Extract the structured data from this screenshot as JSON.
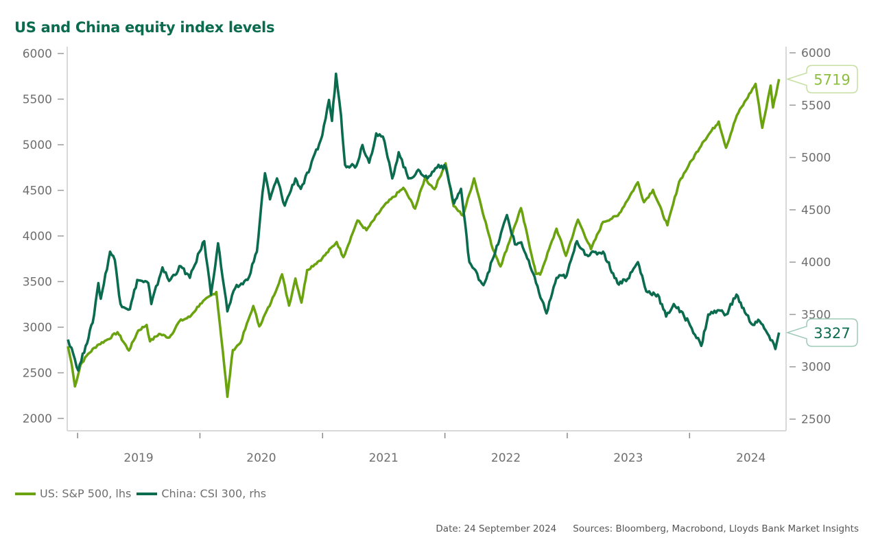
{
  "chart_data": {
    "type": "line",
    "title": "US and China equity index levels",
    "xlabel": "",
    "x_tick_labels": [
      "2019",
      "2020",
      "2021",
      "2022",
      "2023",
      "2024"
    ],
    "xlim": [
      "2018-12-01",
      "2024-10-15"
    ],
    "left_axis": {
      "label": "lhs",
      "ylim": [
        2000,
        6000
      ],
      "ticks": [
        2000,
        2500,
        3000,
        3500,
        4000,
        4500,
        5000,
        5500,
        6000
      ]
    },
    "right_axis": {
      "label": "rhs",
      "ylim": [
        2500,
        6000
      ],
      "ticks": [
        2500,
        3000,
        3500,
        4000,
        4500,
        5000,
        5500,
        6000
      ]
    },
    "grid": false,
    "legend_position": "bottom-left",
    "series": [
      {
        "name": "US: S&P 500, lhs",
        "axis": "left",
        "color": "#6aa30f",
        "last_value_label": "5719",
        "points": [
          [
            "2018-12-03",
            2790
          ],
          [
            "2018-12-14",
            2600
          ],
          [
            "2018-12-24",
            2351
          ],
          [
            "2019-01-10",
            2590
          ],
          [
            "2019-02-01",
            2706
          ],
          [
            "2019-03-01",
            2803
          ],
          [
            "2019-04-01",
            2867
          ],
          [
            "2019-04-30",
            2945
          ],
          [
            "2019-06-03",
            2744
          ],
          [
            "2019-07-01",
            2964
          ],
          [
            "2019-07-26",
            3025
          ],
          [
            "2019-08-05",
            2844
          ],
          [
            "2019-09-01",
            2926
          ],
          [
            "2019-10-02",
            2887
          ],
          [
            "2019-11-01",
            3066
          ],
          [
            "2019-12-02",
            3113
          ],
          [
            "2020-01-02",
            3257
          ],
          [
            "2020-02-19",
            3386
          ],
          [
            "2020-03-09",
            2746
          ],
          [
            "2020-03-23",
            2237
          ],
          [
            "2020-04-08",
            2750
          ],
          [
            "2020-05-01",
            2830
          ],
          [
            "2020-06-08",
            3232
          ],
          [
            "2020-06-26",
            3009
          ],
          [
            "2020-07-31",
            3271
          ],
          [
            "2020-09-02",
            3580
          ],
          [
            "2020-09-23",
            3237
          ],
          [
            "2020-10-12",
            3534
          ],
          [
            "2020-10-30",
            3270
          ],
          [
            "2020-11-16",
            3627
          ],
          [
            "2020-12-31",
            3756
          ],
          [
            "2021-02-12",
            3934
          ],
          [
            "2021-03-04",
            3768
          ],
          [
            "2021-04-15",
            4170
          ],
          [
            "2021-05-12",
            4063
          ],
          [
            "2021-07-01",
            4320
          ],
          [
            "2021-08-30",
            4528
          ],
          [
            "2021-10-04",
            4300
          ],
          [
            "2021-11-02",
            4630
          ],
          [
            "2021-12-01",
            4513
          ],
          [
            "2022-01-03",
            4796
          ],
          [
            "2022-01-27",
            4326
          ],
          [
            "2022-02-24",
            4225
          ],
          [
            "2022-03-29",
            4631
          ],
          [
            "2022-05-20",
            3901
          ],
          [
            "2022-06-16",
            3666
          ],
          [
            "2022-08-16",
            4305
          ],
          [
            "2022-09-30",
            3585
          ],
          [
            "2022-10-12",
            3577
          ],
          [
            "2022-11-30",
            4080
          ],
          [
            "2022-12-28",
            3783
          ],
          [
            "2023-02-02",
            4179
          ],
          [
            "2023-03-13",
            3855
          ],
          [
            "2023-04-18",
            4154
          ],
          [
            "2023-06-01",
            4221
          ],
          [
            "2023-07-31",
            4589
          ],
          [
            "2023-08-18",
            4370
          ],
          [
            "2023-09-14",
            4505
          ],
          [
            "2023-10-27",
            4117
          ],
          [
            "2023-12-01",
            4594
          ],
          [
            "2023-12-29",
            4770
          ],
          [
            "2024-02-09",
            5026
          ],
          [
            "2024-03-28",
            5254
          ],
          [
            "2024-04-19",
            4967
          ],
          [
            "2024-05-21",
            5321
          ],
          [
            "2024-07-16",
            5667
          ],
          [
            "2024-08-05",
            5186
          ],
          [
            "2024-08-30",
            5648
          ],
          [
            "2024-09-06",
            5408
          ],
          [
            "2024-09-24",
            5719
          ]
        ]
      },
      {
        "name": "China: CSI 300, rhs",
        "axis": "right",
        "color": "#0b6b4f",
        "last_value_label": "3327",
        "points": [
          [
            "2018-12-03",
            3260
          ],
          [
            "2018-12-14",
            3180
          ],
          [
            "2019-01-03",
            2965
          ],
          [
            "2019-01-25",
            3200
          ],
          [
            "2019-02-15",
            3420
          ],
          [
            "2019-03-04",
            3800
          ],
          [
            "2019-03-11",
            3650
          ],
          [
            "2019-04-08",
            4100
          ],
          [
            "2019-04-22",
            4020
          ],
          [
            "2019-05-09",
            3600
          ],
          [
            "2019-06-06",
            3550
          ],
          [
            "2019-06-28",
            3830
          ],
          [
            "2019-07-31",
            3800
          ],
          [
            "2019-08-09",
            3600
          ],
          [
            "2019-09-11",
            3950
          ],
          [
            "2019-10-01",
            3820
          ],
          [
            "2019-11-05",
            3960
          ],
          [
            "2019-12-02",
            3850
          ],
          [
            "2019-12-31",
            4100
          ],
          [
            "2020-01-14",
            4200
          ],
          [
            "2020-02-03",
            3690
          ],
          [
            "2020-02-24",
            4180
          ],
          [
            "2020-03-23",
            3530
          ],
          [
            "2020-04-15",
            3750
          ],
          [
            "2020-05-22",
            3830
          ],
          [
            "2020-06-19",
            4100
          ],
          [
            "2020-07-06",
            4670
          ],
          [
            "2020-07-13",
            4850
          ],
          [
            "2020-07-28",
            4600
          ],
          [
            "2020-08-18",
            4800
          ],
          [
            "2020-09-10",
            4540
          ],
          [
            "2020-10-12",
            4800
          ],
          [
            "2020-10-28",
            4700
          ],
          [
            "2020-11-25",
            4900
          ],
          [
            "2020-12-31",
            5210
          ],
          [
            "2021-01-20",
            5550
          ],
          [
            "2021-01-29",
            5350
          ],
          [
            "2021-02-10",
            5800
          ],
          [
            "2021-02-25",
            5400
          ],
          [
            "2021-03-09",
            4930
          ],
          [
            "2021-04-12",
            4920
          ],
          [
            "2021-04-30",
            5120
          ],
          [
            "2021-05-20",
            4950
          ],
          [
            "2021-06-10",
            5230
          ],
          [
            "2021-06-30",
            5200
          ],
          [
            "2021-07-28",
            4800
          ],
          [
            "2021-08-16",
            5050
          ],
          [
            "2021-09-14",
            4800
          ],
          [
            "2021-10-18",
            4870
          ],
          [
            "2021-11-10",
            4800
          ],
          [
            "2021-12-13",
            4930
          ],
          [
            "2022-01-04",
            4900
          ],
          [
            "2022-01-28",
            4560
          ],
          [
            "2022-02-18",
            4700
          ],
          [
            "2022-03-15",
            4000
          ],
          [
            "2022-04-26",
            3780
          ],
          [
            "2022-05-31",
            4090
          ],
          [
            "2022-07-05",
            4450
          ],
          [
            "2022-07-29",
            4170
          ],
          [
            "2022-08-17",
            4190
          ],
          [
            "2022-09-30",
            3800
          ],
          [
            "2022-10-31",
            3510
          ],
          [
            "2022-11-30",
            3850
          ],
          [
            "2022-12-30",
            3870
          ],
          [
            "2023-01-30",
            4200
          ],
          [
            "2023-02-28",
            4070
          ],
          [
            "2023-04-18",
            4100
          ],
          [
            "2023-05-31",
            3800
          ],
          [
            "2023-06-30",
            3840
          ],
          [
            "2023-07-31",
            4000
          ],
          [
            "2023-08-25",
            3720
          ],
          [
            "2023-09-28",
            3690
          ],
          [
            "2023-10-23",
            3480
          ],
          [
            "2023-11-15",
            3600
          ],
          [
            "2023-12-29",
            3430
          ],
          [
            "2024-02-05",
            3200
          ],
          [
            "2024-02-26",
            3500
          ],
          [
            "2024-03-29",
            3540
          ],
          [
            "2024-04-19",
            3500
          ],
          [
            "2024-05-20",
            3690
          ],
          [
            "2024-06-14",
            3520
          ],
          [
            "2024-07-08",
            3400
          ],
          [
            "2024-07-24",
            3450
          ],
          [
            "2024-08-20",
            3320
          ],
          [
            "2024-09-13",
            3170
          ],
          [
            "2024-09-24",
            3327
          ]
        ]
      }
    ]
  },
  "legend": {
    "items": [
      {
        "label": "US: S&P 500, lhs",
        "color": "#6aa30f"
      },
      {
        "label": "China: CSI 300, rhs",
        "color": "#0b6b4f"
      }
    ]
  },
  "footer": {
    "date": "Date: 24 September 2024",
    "sources": "Sources: Bloomberg, Macrobond, Lloyds Bank Market Insights"
  }
}
